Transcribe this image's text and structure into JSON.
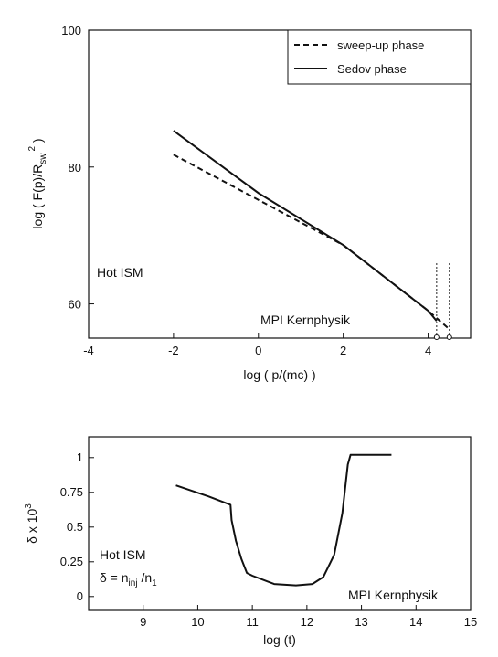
{
  "chart_data": [
    {
      "type": "line",
      "xlabel": "log ( p/(mc) )",
      "ylabel": "log ( F(p)/R_sw^2 )",
      "xlim": [
        -4,
        5
      ],
      "ylim": [
        55,
        100
      ],
      "xticks": [
        -4,
        -2,
        0,
        2,
        4
      ],
      "yticks": [
        60,
        80,
        100
      ],
      "legend_position": "top-right",
      "series": [
        {
          "name": "sweep-up phase",
          "style": "dashed",
          "x": [
            -2,
            0,
            2,
            4,
            4.5
          ],
          "y": [
            81.8,
            75.2,
            68.6,
            59.0,
            56.3
          ]
        },
        {
          "name": "Sedov phase",
          "style": "solid",
          "x": [
            -2,
            0,
            2,
            4,
            4.2
          ],
          "y": [
            85.3,
            76.2,
            68.6,
            59.0,
            57.5
          ]
        }
      ],
      "markers": [
        {
          "x": 4.2,
          "label": ""
        },
        {
          "x": 4.5,
          "label": ""
        }
      ],
      "annotations": [
        "Hot ISM",
        "MPI Kernphysik"
      ]
    },
    {
      "type": "line",
      "xlabel": "log (t)",
      "ylabel": "δ x 10^3",
      "xlim": [
        8,
        15
      ],
      "ylim": [
        -0.1,
        1.15
      ],
      "xticks": [
        9,
        10,
        11,
        12,
        13,
        14,
        15
      ],
      "yticks": [
        0,
        0.25,
        0.5,
        0.75,
        1
      ],
      "series": [
        {
          "name": "",
          "style": "solid",
          "x": [
            9.6,
            10.2,
            10.6,
            10.62,
            10.7,
            10.8,
            10.9,
            11.0,
            11.4,
            11.8,
            12.1,
            12.3,
            12.5,
            12.65,
            12.75,
            12.8,
            13.2,
            13.55
          ],
          "y": [
            0.8,
            0.72,
            0.66,
            0.55,
            0.4,
            0.27,
            0.17,
            0.15,
            0.09,
            0.08,
            0.09,
            0.14,
            0.3,
            0.6,
            0.95,
            1.02,
            1.02,
            1.02
          ]
        }
      ],
      "annotations": [
        "Hot ISM",
        "δ = n_inj /n_1",
        "MPI Kernphysik"
      ]
    }
  ],
  "labels": {
    "top_ylabel_main": "log ( F(p)/R",
    "top_ylabel_sub": "sw",
    "top_ylabel_sup": "2",
    "top_ylabel_end": " )",
    "top_xlabel": "log ( p/(mc) )",
    "legend_1": "sweep-up phase",
    "legend_2": "Sedov phase",
    "hot_ism": "Hot ISM",
    "mpi": "MPI Kernphysik",
    "bottom_xlabel": "log (t)",
    "bottom_ylabel_main": "δ x 10",
    "bottom_ylabel_sup": "3",
    "bottom_delta_main": "δ = n",
    "bottom_delta_sub1": "inj",
    "bottom_delta_mid": " /n",
    "bottom_delta_sub2": "1"
  }
}
